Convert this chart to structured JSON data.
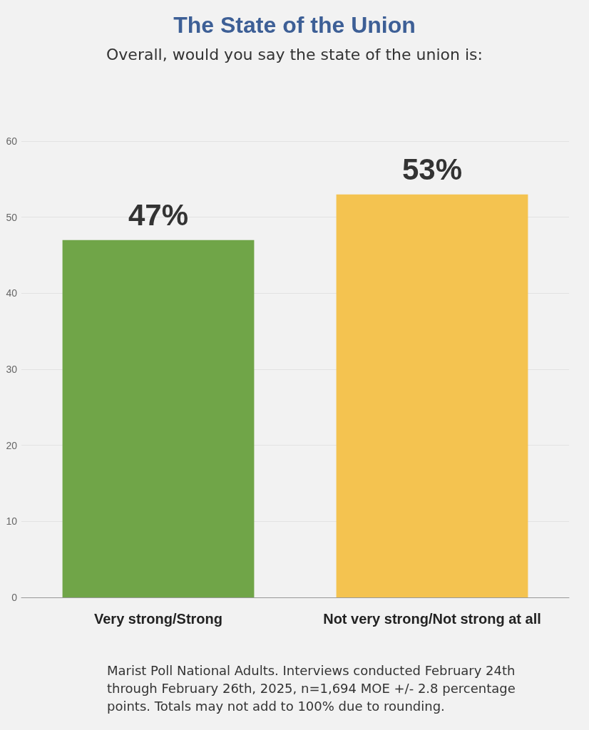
{
  "chart_data": {
    "type": "bar",
    "title": "The State of the Union",
    "subtitle": "Overall, would you say the state of the union is:",
    "categories": [
      "Very strong/Strong",
      "Not very strong/Not strong at all"
    ],
    "values": [
      47,
      53
    ],
    "colors": [
      "#70a548",
      "#f4c350"
    ],
    "value_labels": [
      "47%",
      "53%"
    ],
    "ylim": [
      0,
      60
    ],
    "yticks": [
      0,
      10,
      20,
      30,
      40,
      50,
      60
    ],
    "grid": "y",
    "annotations": [
      "Marist Poll National Adults. Interviews conducted February 24th through February 26th, 2025, n=1,694 MOE +/- 2.8 percentage points. Totals may not add to 100% due to rounding."
    ]
  }
}
